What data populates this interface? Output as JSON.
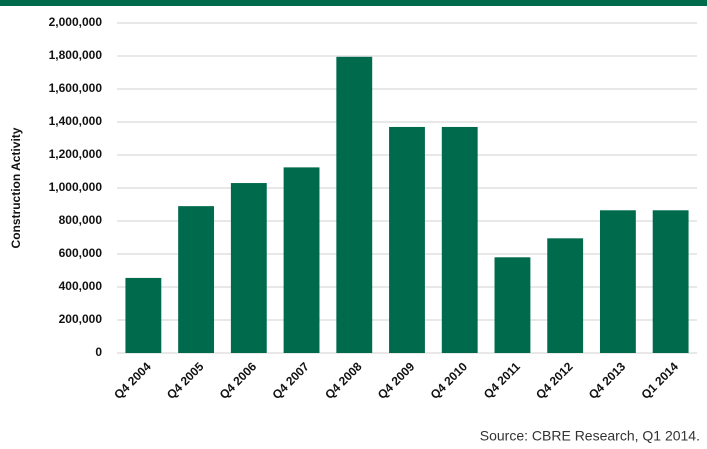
{
  "chart_data": {
    "type": "bar",
    "ylabel": "Construction Activity",
    "source": "Source: CBRE Research, Q1 2014.",
    "categories": [
      "Q4 2004",
      "Q4 2005",
      "Q4 2006",
      "Q4 2007",
      "Q4 2008",
      "Q4 2009",
      "Q4 2010",
      "Q4 2011",
      "Q4 2012",
      "Q4 2013",
      "Q1 2014"
    ],
    "values": [
      455000,
      890000,
      1030000,
      1125000,
      1795000,
      1370000,
      1370000,
      580000,
      695000,
      865000,
      865000
    ],
    "color": "#006a4d",
    "ylim": [
      0,
      2000000
    ],
    "yticks": [
      0,
      {
        "value": 200000,
        "label": "200,000"
      },
      {
        "value": 400000,
        "label": "400,000"
      },
      {
        "value": 600000,
        "label": "600,000"
      },
      {
        "value": 800000,
        "label": "800,000"
      },
      {
        "value": 1000000,
        "label": "1,000,000"
      },
      {
        "value": 1200000,
        "label": "1,200,000"
      },
      {
        "value": 1400000,
        "label": "1,400,000"
      },
      {
        "value": 1600000,
        "label": "1,600,000"
      },
      {
        "value": 1800000,
        "label": "1,800,000"
      },
      {
        "value": 2000000,
        "label": "2,000,000"
      }
    ],
    "grid": true
  }
}
